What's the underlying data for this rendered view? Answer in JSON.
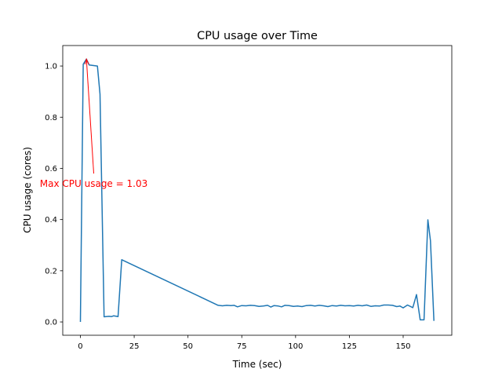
{
  "chart_data": {
    "type": "line",
    "title": "CPU usage over Time",
    "xlabel": "Time (sec)",
    "ylabel": "CPU usage (cores)",
    "xlim": [
      -8.2,
      172.6
    ],
    "ylim": [
      -0.052,
      1.08
    ],
    "xticks": [
      0,
      25,
      50,
      75,
      100,
      125,
      150
    ],
    "xtick_labels": [
      "0",
      "25",
      "50",
      "75",
      "100",
      "125",
      "150"
    ],
    "yticks": [
      0.0,
      0.2,
      0.4,
      0.6,
      0.8,
      1.0
    ],
    "ytick_labels": [
      "0.0",
      "0.2",
      "0.4",
      "0.6",
      "0.8",
      "1.0"
    ],
    "grid": false,
    "series": [
      {
        "name": "CPU usage",
        "color": "#1f77b4",
        "x": [
          0,
          1.3,
          2.8,
          4.1,
          7.9,
          9.1,
          11.0,
          13.3,
          14.5,
          15.5,
          17.5,
          19.2,
          64,
          66,
          68,
          70,
          71.5,
          73,
          75,
          77,
          79,
          81,
          83,
          85,
          87,
          88.5,
          90,
          92,
          93.5,
          95,
          97,
          99,
          101,
          103,
          105,
          107,
          109,
          111,
          113,
          115,
          117,
          119,
          121,
          123,
          125,
          127,
          129,
          131,
          133,
          135,
          137,
          139,
          141,
          143,
          145,
          147,
          148.5,
          150,
          152,
          154.5,
          156.2,
          157.9,
          159.7,
          161.5,
          162.7,
          164.3
        ],
        "y": [
          0.0,
          1.007,
          1.027,
          1.004,
          1.0,
          0.89,
          0.02,
          0.022,
          0.021,
          0.024,
          0.021,
          0.243,
          0.065,
          0.063,
          0.065,
          0.064,
          0.065,
          0.059,
          0.064,
          0.063,
          0.065,
          0.064,
          0.061,
          0.062,
          0.065,
          0.058,
          0.064,
          0.062,
          0.059,
          0.065,
          0.064,
          0.061,
          0.062,
          0.06,
          0.064,
          0.065,
          0.062,
          0.065,
          0.063,
          0.06,
          0.064,
          0.062,
          0.065,
          0.063,
          0.064,
          0.062,
          0.065,
          0.063,
          0.066,
          0.061,
          0.063,
          0.062,
          0.066,
          0.066,
          0.065,
          0.06,
          0.062,
          0.055,
          0.066,
          0.056,
          0.107,
          0.008,
          0.008,
          0.399,
          0.317,
          0.004
        ]
      }
    ],
    "annotations": [
      {
        "text": "Max CPU usage = 1.03",
        "color": "#ff0000",
        "xy": [
          2.8,
          1.027
        ],
        "xytext": [
          6.2,
          0.54
        ],
        "arrow_tail": [
          6.2,
          0.58
        ]
      }
    ]
  }
}
